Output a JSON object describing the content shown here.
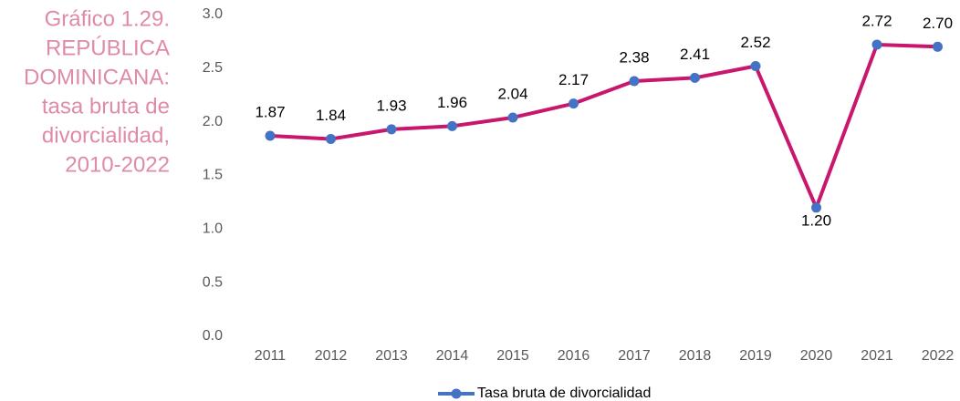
{
  "chart_data": {
    "type": "line",
    "title": [
      "Gráfico 1.29.",
      "REPÚBLICA",
      "DOMINICANA:",
      "tasa bruta de",
      "divorcialidad,",
      "2010-2022"
    ],
    "categories": [
      "2011",
      "2012",
      "2013",
      "2014",
      "2015",
      "2016",
      "2017",
      "2018",
      "2019",
      "2020",
      "2021",
      "2022"
    ],
    "series": [
      {
        "name": "Tasa bruta de divorcialidad",
        "color": "#c8176c",
        "marker_color": "#4472c4",
        "values": [
          1.87,
          1.84,
          1.93,
          1.96,
          2.04,
          2.17,
          2.38,
          2.41,
          2.52,
          1.2,
          2.72,
          2.7
        ],
        "value_labels": [
          "1.87",
          "1.84",
          "1.93",
          "1.96",
          "2.04",
          "2.17",
          "2.38",
          "2.41",
          "2.52",
          "1.20",
          "2.72",
          "2.70"
        ]
      }
    ],
    "ylim": [
      0,
      3
    ],
    "yticks": [
      {
        "value": 0,
        "label": "0.0"
      },
      0.5,
      {
        "value": 1,
        "label": "1.0"
      },
      1.5,
      {
        "value": 2,
        "label": "2.0"
      },
      2.5,
      {
        "value": 3,
        "label": "3.0"
      }
    ],
    "grid": false,
    "legend": "bottom"
  }
}
